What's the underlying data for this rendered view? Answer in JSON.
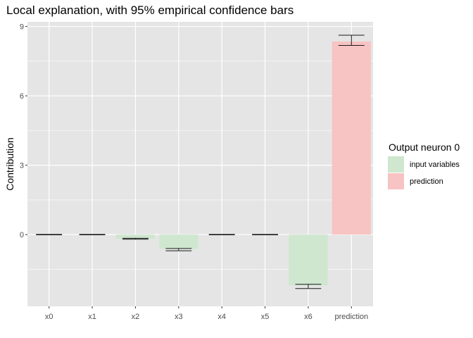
{
  "chart_data": {
    "type": "bar",
    "title": "Local explanation, with 95% empirical confidence bars",
    "xlabel": "",
    "ylabel": "Contribution",
    "ylim": [
      -3.1,
      9.2
    ],
    "yticks": [
      0,
      3,
      6,
      9
    ],
    "grid": true,
    "legend_position": "right",
    "legend_title": "Output neuron 0",
    "legend_entries": [
      {
        "label": "input variables",
        "color": "#cfe6cf"
      },
      {
        "label": "prediction",
        "color": "#f8c3c3"
      }
    ],
    "categories": [
      "x0",
      "x1",
      "x2",
      "x3",
      "x4",
      "x5",
      "x6",
      "prediction"
    ],
    "values": [
      0.0,
      0.0,
      -0.18,
      -0.62,
      0.0,
      0.0,
      -2.2,
      8.35
    ],
    "ci_low": [
      -0.01,
      -0.01,
      -0.2,
      -0.7,
      -0.01,
      -0.01,
      -2.33,
      8.18
    ],
    "ci_high": [
      0.01,
      0.01,
      -0.16,
      -0.6,
      0.01,
      0.01,
      -2.15,
      8.62
    ],
    "groups": [
      "input variables",
      "input variables",
      "input variables",
      "input variables",
      "input variables",
      "input variables",
      "input variables",
      "prediction"
    ],
    "colors": {
      "input variables": "#cfe6cf",
      "prediction": "#f8c3c3",
      "panel_background": "#e5e5e5",
      "grid": "#ffffff",
      "error_bar": "#1a1a1a"
    }
  }
}
